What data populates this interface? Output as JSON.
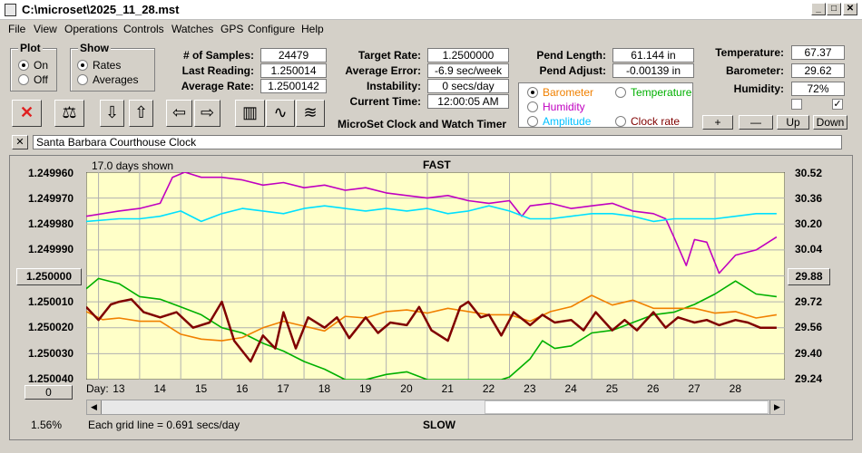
{
  "window": {
    "title": "C:\\microset\\2025_11_28.mst",
    "icons": {
      "app": "stopwatch-icon",
      "minimize": "minimize-icon",
      "maximize": "maximize-icon",
      "close": "close-icon"
    }
  },
  "menu": [
    "File",
    "View",
    "Operations",
    "Controls",
    "Watches",
    "GPS",
    "Configure",
    "Help"
  ],
  "plot_group": {
    "label": "Plot",
    "options": [
      "On",
      "Off"
    ],
    "selected": "On"
  },
  "show_group": {
    "label": "Show",
    "options": [
      "Rates",
      "Averages"
    ],
    "selected": "Rates"
  },
  "stats": {
    "samples_label": "# of Samples:",
    "samples": "24479",
    "last_label": "Last Reading:",
    "last": "1.250014",
    "avg_label": "Average Rate:",
    "avg": "1.2500142",
    "target_label": "Target Rate:",
    "target": "1.2500000",
    "error_label": "Average Error:",
    "error": "-6.9 sec/week",
    "instab_label": "Instability:",
    "instab": "0 secs/day",
    "time_label": "Current Time:",
    "time": "12:00:05 AM",
    "pend_len_label": "Pend Length:",
    "pend_len": "61.144 in",
    "pend_adj_label": "Pend Adjust:",
    "pend_adj": "-0.00139 in",
    "temp_label": "Temperature:",
    "temp": "67.37",
    "baro_label": "Barometer:",
    "baro": "29.62",
    "hum_label": "Humidity:",
    "hum": "72%"
  },
  "app_caption": "MicroSet Clock and Watch Timer",
  "toolbar": {
    "icons": [
      "stop-icon",
      "balance-scale-icon",
      "arrow-down-icon",
      "arrow-up-icon",
      "arrow-left-icon",
      "arrow-right-icon",
      "bar-chart-icon",
      "line-wave-icon",
      "multi-wave-icon"
    ],
    "glyphs": [
      "✕",
      "⚖",
      "⇩",
      "⇧",
      "⇦",
      "⇨",
      "▥",
      "∿",
      "≋"
    ]
  },
  "legend": [
    {
      "label": "Barometer",
      "color": "#f08000",
      "selected": true
    },
    {
      "label": "Temperature",
      "color": "#00b000",
      "selected": false
    },
    {
      "label": "Humidity",
      "color": "#c000c0",
      "selected": false
    },
    {
      "label": "Clock rate",
      "color": "#800000",
      "selected": false
    },
    {
      "label": "Amplitude",
      "color": "#00c0ff",
      "selected": false
    }
  ],
  "adjust_buttons": [
    "+",
    "—",
    "Up",
    "Down"
  ],
  "checkboxes": [
    false,
    true
  ],
  "description_close": "✕",
  "description": "Santa Barbara Courthouse Clock",
  "plot": {
    "days_shown": "17.0 days shown",
    "fast": "FAST",
    "slow": "SLOW",
    "grid_note": "Each grid line = 0.691 secs/day",
    "day_label": "Day:",
    "center_left": "1.250000",
    "center_right": "29.88",
    "scroll_value": "0",
    "zoom": "1.56%"
  },
  "chart_data": {
    "type": "line",
    "x_label": "Day:",
    "x_ticks": [
      "13",
      "14",
      "15",
      "16",
      "17",
      "18",
      "19",
      "20",
      "21",
      "22",
      "23",
      "24",
      "25",
      "26",
      "27",
      "28"
    ],
    "xlim": [
      12.2,
      29.2
    ],
    "y_left_ticks": [
      "1.249960",
      "1.249970",
      "1.249980",
      "1.249990",
      "1.250000",
      "1.250010",
      "1.250020",
      "1.250030",
      "1.250040"
    ],
    "y_left_range": [
      1.24996,
      1.25004
    ],
    "y_left_inverted": true,
    "y_right_ticks": [
      "30.52",
      "30.36",
      "30.20",
      "30.04",
      "29.88",
      "29.72",
      "29.56",
      "29.40",
      "29.24"
    ],
    "y_right_range": [
      29.24,
      30.52
    ],
    "grid": true,
    "series": [
      {
        "name": "Humidity",
        "color": "#c000c0",
        "axis": "left",
        "x": [
          12.2,
          13.0,
          13.5,
          14.0,
          14.3,
          14.6,
          15.0,
          15.5,
          16.0,
          16.5,
          17.0,
          17.5,
          18.0,
          18.5,
          19.0,
          19.5,
          20.0,
          20.5,
          21.0,
          21.5,
          22.0,
          22.5,
          22.8,
          23.0,
          23.5,
          24.0,
          24.5,
          25.0,
          25.5,
          26.0,
          26.3,
          26.5,
          26.8,
          27.0,
          27.3,
          27.6,
          28.0,
          28.5,
          29.0
        ],
        "y": [
          1.249977,
          1.249975,
          1.249974,
          1.249972,
          1.249962,
          1.24996,
          1.249962,
          1.249962,
          1.249963,
          1.249965,
          1.249964,
          1.249966,
          1.249965,
          1.249967,
          1.249966,
          1.249968,
          1.249969,
          1.24997,
          1.249969,
          1.249971,
          1.249972,
          1.249971,
          1.249977,
          1.249973,
          1.249972,
          1.249974,
          1.249973,
          1.249972,
          1.249975,
          1.249976,
          1.249978,
          1.249985,
          1.249996,
          1.249986,
          1.249987,
          1.249999,
          1.249992,
          1.24999,
          1.249985
        ]
      },
      {
        "name": "Amplitude",
        "color": "#00e0ff",
        "axis": "left",
        "x": [
          12.2,
          13.0,
          13.5,
          14.0,
          14.5,
          15.0,
          15.5,
          16.0,
          16.5,
          17.0,
          17.5,
          18.0,
          18.5,
          19.0,
          19.5,
          20.0,
          20.5,
          21.0,
          21.5,
          22.0,
          22.5,
          23.0,
          23.5,
          24.0,
          24.5,
          25.0,
          25.5,
          26.0,
          26.5,
          27.0,
          27.5,
          28.0,
          28.5,
          29.0
        ],
        "y": [
          1.249979,
          1.249978,
          1.249978,
          1.249977,
          1.249975,
          1.249979,
          1.249976,
          1.249974,
          1.249975,
          1.249976,
          1.249974,
          1.249973,
          1.249974,
          1.249975,
          1.249974,
          1.249975,
          1.249974,
          1.249976,
          1.249975,
          1.249973,
          1.249975,
          1.249978,
          1.249978,
          1.249977,
          1.249976,
          1.249976,
          1.249977,
          1.249979,
          1.249978,
          1.249978,
          1.249978,
          1.249977,
          1.249976,
          1.249976
        ]
      },
      {
        "name": "Temperature",
        "color": "#00b000",
        "axis": "left",
        "x": [
          12.2,
          12.5,
          13.0,
          13.5,
          14.0,
          14.5,
          15.0,
          15.5,
          16.0,
          16.5,
          17.0,
          17.5,
          18.0,
          18.5,
          19.0,
          19.5,
          20.0,
          20.5,
          21.0,
          21.5,
          22.0,
          22.3,
          22.5,
          23.0,
          23.3,
          23.6,
          24.0,
          24.5,
          25.0,
          25.5,
          26.0,
          26.5,
          27.0,
          27.5,
          28.0,
          28.5,
          29.0
        ],
        "y": [
          1.250005,
          1.250001,
          1.250003,
          1.250008,
          1.250009,
          1.250012,
          1.250015,
          1.25002,
          1.250022,
          1.250026,
          1.250029,
          1.250033,
          1.250036,
          1.25004,
          1.25004,
          1.250038,
          1.250037,
          1.25004,
          1.25004,
          1.25004,
          1.25004,
          1.25004,
          1.250039,
          1.250032,
          1.250025,
          1.250028,
          1.250027,
          1.250022,
          1.250021,
          1.250018,
          1.250015,
          1.250014,
          1.250011,
          1.250007,
          1.250002,
          1.250007,
          1.250008
        ]
      },
      {
        "name": "Barometer",
        "color": "#f08000",
        "axis": "right",
        "x": [
          12.2,
          12.6,
          13.0,
          13.5,
          14.0,
          14.5,
          15.0,
          15.5,
          16.0,
          16.5,
          17.0,
          17.5,
          18.0,
          18.5,
          19.0,
          19.5,
          20.0,
          20.5,
          21.0,
          21.5,
          22.0,
          22.5,
          23.0,
          23.5,
          24.0,
          24.5,
          25.0,
          25.5,
          26.0,
          26.5,
          27.0,
          27.5,
          28.0,
          28.5,
          29.0
        ],
        "y": [
          29.66,
          29.61,
          29.62,
          29.6,
          29.6,
          29.52,
          29.49,
          29.48,
          29.5,
          29.56,
          29.6,
          29.57,
          29.54,
          29.63,
          29.62,
          29.66,
          29.67,
          29.65,
          29.68,
          29.66,
          29.64,
          29.64,
          29.6,
          29.66,
          29.69,
          29.76,
          29.7,
          29.73,
          29.68,
          29.68,
          29.68,
          29.65,
          29.66,
          29.62,
          29.64
        ]
      },
      {
        "name": "Clock rate",
        "color": "#800000",
        "axis": "left",
        "x": [
          12.2,
          12.5,
          12.8,
          13.0,
          13.3,
          13.6,
          14.0,
          14.4,
          14.8,
          15.2,
          15.5,
          15.8,
          16.0,
          16.2,
          16.5,
          16.8,
          17.0,
          17.3,
          17.6,
          18.0,
          18.3,
          18.6,
          19.0,
          19.3,
          19.6,
          20.0,
          20.3,
          20.6,
          21.0,
          21.3,
          21.5,
          21.8,
          22.0,
          22.3,
          22.6,
          23.0,
          23.3,
          23.6,
          24.0,
          24.3,
          24.6,
          25.0,
          25.3,
          25.6,
          26.0,
          26.3,
          26.6,
          27.0,
          27.3,
          27.6,
          28.0,
          28.3,
          28.6,
          29.0
        ],
        "y": [
          1.250012,
          1.250017,
          1.250011,
          1.25001,
          1.250009,
          1.250014,
          1.250016,
          1.250014,
          1.25002,
          1.250018,
          1.25001,
          1.250025,
          1.250029,
          1.250033,
          1.250023,
          1.250028,
          1.250014,
          1.250028,
          1.250016,
          1.25002,
          1.250016,
          1.250024,
          1.250016,
          1.250022,
          1.250018,
          1.250019,
          1.250012,
          1.250021,
          1.250025,
          1.250012,
          1.25001,
          1.250016,
          1.250015,
          1.250023,
          1.250014,
          1.250019,
          1.250015,
          1.250018,
          1.250017,
          1.250021,
          1.250014,
          1.250021,
          1.250017,
          1.250021,
          1.250014,
          1.25002,
          1.250016,
          1.250018,
          1.250017,
          1.250019,
          1.250017,
          1.250018,
          1.25002,
          1.25002
        ]
      }
    ]
  }
}
